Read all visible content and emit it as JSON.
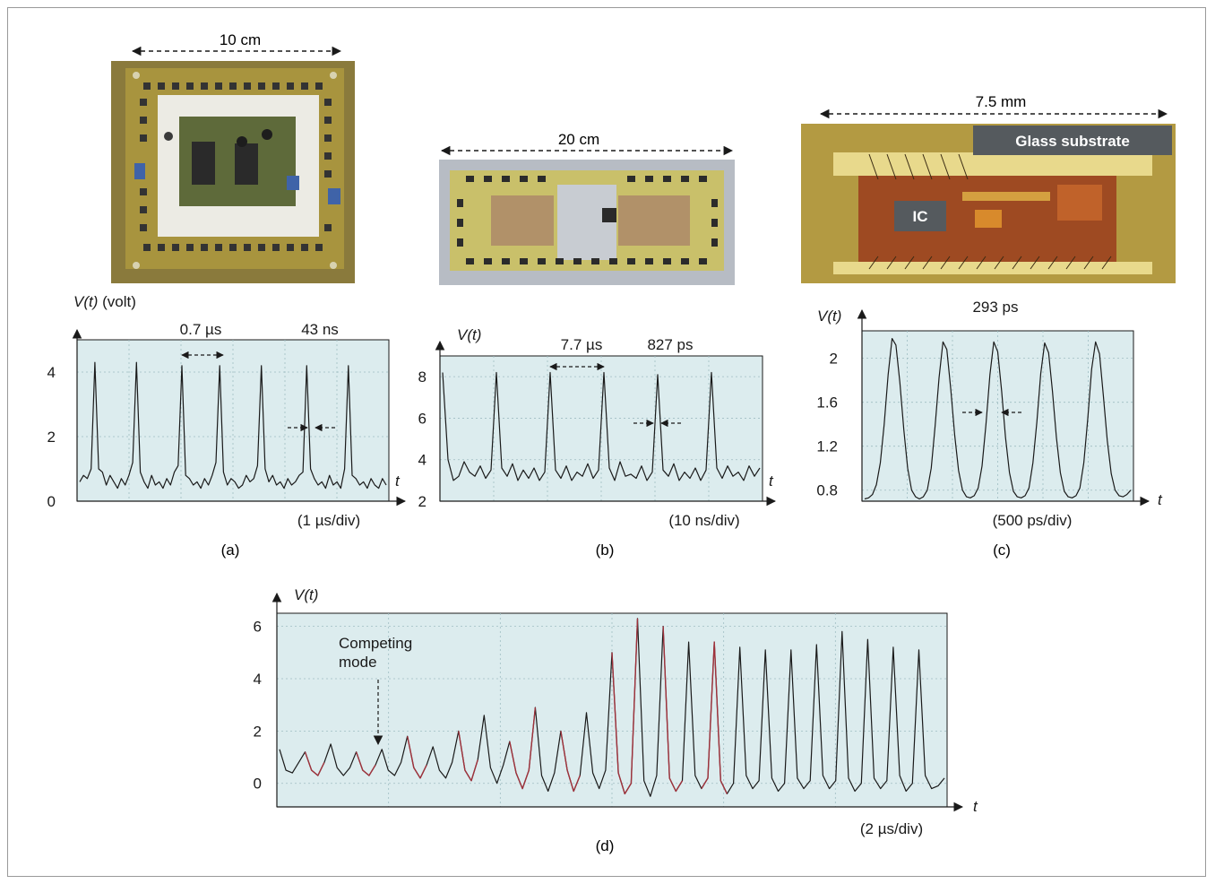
{
  "photos": {
    "a": {
      "dimension": "10 cm"
    },
    "b": {
      "dimension": "20 cm"
    },
    "c": {
      "dimension": "7.5 mm",
      "substrate_label": "Glass substrate",
      "ic_label": "IC"
    }
  },
  "panel_labels": {
    "a": "(a)",
    "b": "(b)",
    "c": "(c)",
    "d": "(d)"
  },
  "colors": {
    "plot_bg": "#dcecee",
    "trace": "#1a1a1a",
    "competing_trace": "#a0323c",
    "grid": "#9fbdc2"
  },
  "chart_data": [
    {
      "id": "a",
      "type": "line",
      "ylabel": "V(t)",
      "ylabel_unit": "(volt)",
      "xlabel": "t",
      "time_scale": "(1 µs/div)",
      "ylim": [
        0,
        5
      ],
      "yticks": [
        0,
        2,
        4
      ],
      "annotations": {
        "period": "0.7 µs",
        "width": "43 ns"
      },
      "series": [
        {
          "values": [
            0.6,
            0.8,
            0.7,
            1.0,
            4.3,
            1.0,
            0.9,
            0.5,
            0.8,
            0.6,
            0.4,
            0.7,
            0.5,
            0.8,
            1.2,
            4.3,
            0.9,
            0.6,
            0.4,
            0.8,
            0.5,
            0.6,
            0.4,
            0.7,
            0.5,
            0.9,
            1.1,
            4.2,
            0.8,
            0.7,
            0.5,
            0.6,
            0.4,
            0.7,
            0.5,
            0.8,
            1.2,
            4.2,
            0.9,
            0.5,
            0.7,
            0.6,
            0.4,
            0.5,
            0.8,
            0.6,
            0.7,
            1.1,
            4.2,
            1.0,
            0.6,
            0.8,
            0.5,
            0.6,
            0.4,
            0.7,
            0.5,
            0.6,
            0.8,
            0.9,
            4.2,
            1.0,
            0.7,
            0.5,
            0.6,
            0.4,
            0.8,
            0.5,
            0.6,
            0.4,
            1.0,
            4.2,
            0.8,
            0.7,
            0.5,
            0.6,
            0.4,
            0.7,
            0.5,
            0.4,
            0.7,
            0.5
          ]
        }
      ]
    },
    {
      "id": "b",
      "type": "line",
      "ylabel": "V(t)",
      "xlabel": "t",
      "time_scale": "(10 ns/div)",
      "ylim": [
        2,
        9
      ],
      "yticks": [
        2,
        4,
        6,
        8
      ],
      "annotations": {
        "period": "7.7 µs",
        "width": "827 ps"
      },
      "series": [
        {
          "values": [
            8.2,
            4.0,
            3.0,
            3.2,
            3.9,
            3.4,
            3.2,
            3.7,
            3.1,
            3.5,
            8.2,
            3.6,
            3.2,
            3.8,
            3.0,
            3.5,
            3.1,
            3.6,
            3.0,
            3.4,
            8.2,
            3.5,
            3.1,
            3.7,
            3.0,
            3.4,
            3.2,
            3.8,
            3.1,
            3.5,
            8.2,
            3.6,
            3.0,
            3.9,
            3.2,
            3.3,
            3.1,
            3.7,
            3.0,
            3.4,
            8.1,
            3.5,
            3.2,
            3.8,
            3.0,
            3.4,
            3.1,
            3.6,
            3.0,
            3.5,
            8.2,
            3.6,
            3.1,
            3.7,
            3.2,
            3.4,
            3.0,
            3.7,
            3.2,
            3.6
          ]
        }
      ]
    },
    {
      "id": "c",
      "type": "line",
      "ylabel": "V(t)",
      "xlabel": "t",
      "time_scale": "(500 ps/div)",
      "ylim": [
        0.7,
        2.25
      ],
      "yticks": [
        0.8,
        1.2,
        1.6,
        2.0
      ],
      "annotations": {
        "width": "293 ps"
      },
      "series": [
        {
          "values": [
            0.72,
            0.73,
            0.76,
            0.85,
            1.05,
            1.4,
            1.85,
            2.18,
            2.12,
            1.78,
            1.35,
            1.0,
            0.8,
            0.74,
            0.72,
            0.74,
            0.8,
            1.0,
            1.38,
            1.82,
            2.15,
            2.08,
            1.72,
            1.3,
            0.98,
            0.8,
            0.74,
            0.73,
            0.75,
            0.82,
            1.02,
            1.4,
            1.85,
            2.15,
            2.06,
            1.7,
            1.28,
            0.96,
            0.79,
            0.74,
            0.73,
            0.75,
            0.82,
            1.05,
            1.42,
            1.86,
            2.14,
            2.05,
            1.7,
            1.28,
            0.96,
            0.79,
            0.74,
            0.73,
            0.75,
            0.82,
            1.05,
            1.45,
            1.9,
            2.15,
            2.04,
            1.66,
            1.25,
            0.95,
            0.8,
            0.75,
            0.74,
            0.76,
            0.8
          ]
        }
      ]
    },
    {
      "id": "d",
      "type": "line",
      "ylabel": "V(t)",
      "xlabel": "t",
      "time_scale": "(2 µs/div)",
      "ylim": [
        -0.9,
        6.5
      ],
      "yticks": [
        0,
        2,
        4,
        6
      ],
      "annotations": {
        "competing_mode": "Competing mode"
      },
      "series": [
        {
          "name": "",
          "values": [
            1.3,
            0.5,
            0.4,
            0.8,
            1.2,
            0.5,
            0.3,
            0.8,
            1.5,
            0.6,
            0.3,
            0.6,
            1.2,
            0.5,
            0.3,
            0.7,
            1.3,
            0.5,
            0.3,
            0.8,
            1.8,
            0.6,
            0.2,
            0.7,
            1.4,
            0.5,
            0.2,
            0.8,
            2.0,
            0.5,
            0.1,
            0.9,
            2.6,
            0.6,
            0.0,
            0.7,
            1.6,
            0.4,
            -0.2,
            0.5,
            2.9,
            0.3,
            -0.3,
            0.4,
            2.0,
            0.5,
            -0.3,
            0.3,
            2.7,
            0.4,
            -0.2,
            0.5,
            5.0,
            0.4,
            -0.4,
            0.0,
            6.3,
            0.1,
            -0.5,
            0.3,
            6.0,
            0.2,
            -0.3,
            0.1,
            5.4,
            0.3,
            -0.2,
            0.2,
            5.4,
            0.1,
            -0.4,
            0.0,
            5.2,
            0.3,
            -0.2,
            0.1,
            5.1,
            0.2,
            -0.3,
            0.0,
            5.1,
            0.2,
            -0.2,
            0.1,
            5.3,
            0.3,
            -0.2,
            0.1,
            5.8,
            0.2,
            -0.3,
            0.0,
            5.5,
            0.2,
            -0.2,
            0.1,
            5.2,
            0.3,
            -0.3,
            0.0,
            5.1,
            0.3,
            -0.2,
            -0.1,
            0.2
          ]
        },
        {
          "name": "Competing mode",
          "segments": [
            [
              4,
              7
            ],
            [
              12,
              15
            ],
            [
              20,
              23
            ],
            [
              28,
              31
            ],
            [
              36,
              40
            ],
            [
              44,
              47
            ],
            [
              52,
              56
            ],
            [
              60,
              63
            ],
            [
              66,
              70
            ]
          ]
        }
      ]
    }
  ]
}
